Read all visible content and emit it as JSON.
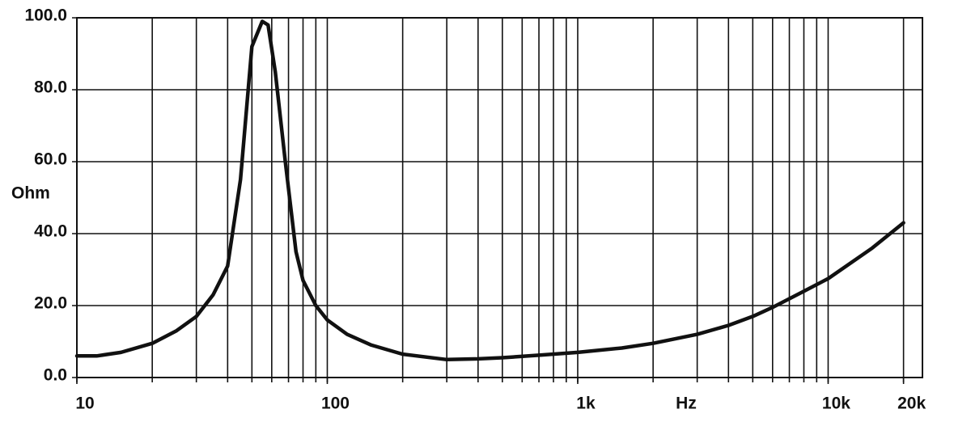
{
  "chart_data": {
    "type": "line",
    "log_x": true,
    "color": "#111111",
    "ylabel": "Ohm",
    "xlabel": "Hz",
    "x": [
      10,
      12,
      15,
      20,
      25,
      30,
      35,
      40,
      45,
      50,
      55,
      58,
      62,
      68,
      75,
      80,
      90,
      100,
      120,
      150,
      200,
      300,
      400,
      500,
      700,
      1000,
      1500,
      2000,
      3000,
      4000,
      5000,
      6000,
      8000,
      10000,
      15000,
      20000
    ],
    "values": [
      6,
      6,
      7,
      9.5,
      13,
      17,
      23,
      31,
      55,
      92,
      99,
      98,
      85,
      60,
      35,
      27,
      20,
      16,
      12,
      9,
      6.5,
      5,
      5.2,
      5.5,
      6.2,
      7,
      8.2,
      9.5,
      12,
      14.5,
      17,
      19.5,
      24,
      27.5,
      36,
      43
    ],
    "xlim": [
      10,
      23800
    ],
    "ylim": [
      0,
      100
    ],
    "xticks": [
      10,
      100,
      {
        "value": 1000,
        "label": "1k"
      },
      {
        "value": 10000,
        "label": "10k"
      },
      {
        "value": 20000,
        "label": "20k"
      }
    ],
    "xgrid": [
      10,
      20,
      30,
      40,
      50,
      60,
      70,
      80,
      90,
      100,
      200,
      300,
      400,
      500,
      600,
      700,
      800,
      900,
      1000,
      2000,
      3000,
      4000,
      5000,
      6000,
      7000,
      8000,
      9000,
      10000,
      20000
    ],
    "yticks": [
      {
        "value": 0,
        "label": "0.0"
      },
      {
        "value": 20,
        "label": "20.0"
      },
      {
        "value": 40,
        "label": "40.0"
      },
      {
        "value": 60,
        "label": "60.0"
      },
      {
        "value": 80,
        "label": "80.0"
      },
      {
        "value": 100,
        "label": "100.0"
      }
    ],
    "grid": true
  }
}
